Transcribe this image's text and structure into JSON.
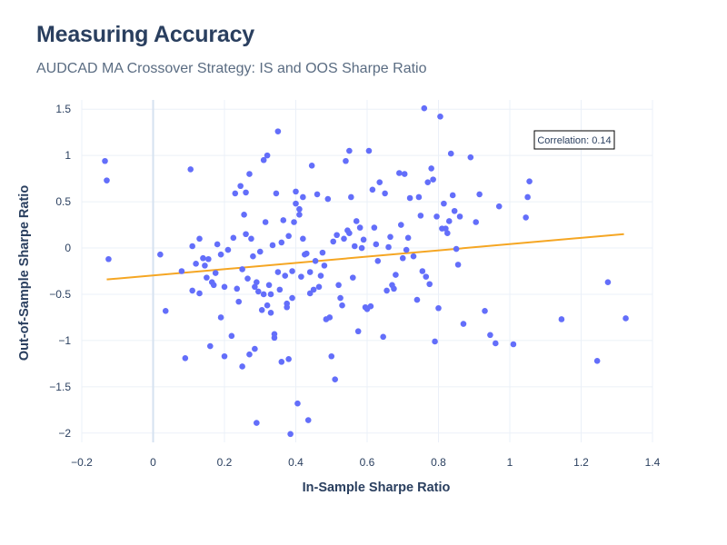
{
  "chart_data": {
    "type": "scatter",
    "title": "Measuring Accuracy",
    "subtitle": "AUDCAD MA Crossover Strategy: IS and OOS Sharpe Ratio",
    "xlabel": "In-Sample Sharpe Ratio",
    "ylabel": "Out-of-Sample Sharpe Ratio",
    "xlim": [
      -0.2,
      1.4
    ],
    "ylim": [
      -2.1,
      1.6
    ],
    "xticks": [
      -0.2,
      0,
      0.2,
      0.4,
      0.6,
      0.8,
      1,
      1.2,
      1.4
    ],
    "xtick_labels": [
      "−0.2",
      "0",
      "0.2",
      "0.4",
      "0.6",
      "0.8",
      "1",
      "1.2",
      "1.4"
    ],
    "yticks": [
      -2,
      -1.5,
      -1,
      -0.5,
      0,
      0.5,
      1,
      1.5
    ],
    "ytick_labels": [
      "−2",
      "−1.5",
      "−1",
      "−0.5",
      "0",
      "0.5",
      "1",
      "1.5"
    ],
    "grid": true,
    "marker_color": "#636efa",
    "trend_color": "#f5a623",
    "trendline": [
      [
        -0.13,
        -0.34
      ],
      [
        1.32,
        0.15
      ]
    ],
    "annotation": "Correlation: 0.14",
    "points": [
      [
        -0.135,
        0.94
      ],
      [
        -0.13,
        0.73
      ],
      [
        -0.125,
        -0.12
      ],
      [
        0.02,
        -0.07
      ],
      [
        0.035,
        -0.68
      ],
      [
        0.08,
        -0.25
      ],
      [
        0.09,
        -1.19
      ],
      [
        0.105,
        0.85
      ],
      [
        0.11,
        0.02
      ],
      [
        0.11,
        -0.46
      ],
      [
        0.12,
        -0.17
      ],
      [
        0.13,
        -0.49
      ],
      [
        0.13,
        0.1
      ],
      [
        0.14,
        -0.11
      ],
      [
        0.145,
        -0.19
      ],
      [
        0.15,
        -0.32
      ],
      [
        0.155,
        -0.12
      ],
      [
        0.16,
        -1.06
      ],
      [
        0.165,
        -0.37
      ],
      [
        0.17,
        -0.4
      ],
      [
        0.175,
        -0.27
      ],
      [
        0.18,
        0.04
      ],
      [
        0.19,
        -0.07
      ],
      [
        0.19,
        -0.75
      ],
      [
        0.2,
        -0.42
      ],
      [
        0.2,
        -1.17
      ],
      [
        0.21,
        -0.02
      ],
      [
        0.22,
        -0.95
      ],
      [
        0.225,
        0.11
      ],
      [
        0.23,
        0.59
      ],
      [
        0.235,
        -0.44
      ],
      [
        0.24,
        -0.58
      ],
      [
        0.245,
        0.67
      ],
      [
        0.25,
        -0.23
      ],
      [
        0.25,
        -1.28
      ],
      [
        0.255,
        0.36
      ],
      [
        0.26,
        0.6
      ],
      [
        0.26,
        0.15
      ],
      [
        0.265,
        -0.33
      ],
      [
        0.27,
        0.8
      ],
      [
        0.27,
        -1.15
      ],
      [
        0.275,
        0.1
      ],
      [
        0.28,
        -0.09
      ],
      [
        0.285,
        -0.42
      ],
      [
        0.285,
        -1.09
      ],
      [
        0.29,
        -1.89
      ],
      [
        0.29,
        -0.37
      ],
      [
        0.295,
        -0.47
      ],
      [
        0.3,
        -0.04
      ],
      [
        0.305,
        -0.67
      ],
      [
        0.31,
        0.95
      ],
      [
        0.31,
        -0.5
      ],
      [
        0.315,
        0.28
      ],
      [
        0.32,
        1.0
      ],
      [
        0.32,
        -0.62
      ],
      [
        0.325,
        -0.4
      ],
      [
        0.33,
        -0.5
      ],
      [
        0.33,
        -0.7
      ],
      [
        0.335,
        0.03
      ],
      [
        0.34,
        -0.93
      ],
      [
        0.34,
        -0.97
      ],
      [
        0.345,
        0.59
      ],
      [
        0.35,
        1.26
      ],
      [
        0.35,
        -0.26
      ],
      [
        0.355,
        -0.45
      ],
      [
        0.36,
        0.06
      ],
      [
        0.36,
        -1.23
      ],
      [
        0.365,
        0.3
      ],
      [
        0.37,
        -0.3
      ],
      [
        0.375,
        -0.6
      ],
      [
        0.375,
        -0.64
      ],
      [
        0.38,
        0.13
      ],
      [
        0.38,
        -1.2
      ],
      [
        0.385,
        -2.01
      ],
      [
        0.39,
        -0.54
      ],
      [
        0.39,
        -0.25
      ],
      [
        0.395,
        0.28
      ],
      [
        0.4,
        0.61
      ],
      [
        0.4,
        0.48
      ],
      [
        0.405,
        -1.68
      ],
      [
        0.41,
        0.42
      ],
      [
        0.41,
        0.36
      ],
      [
        0.415,
        -0.31
      ],
      [
        0.42,
        0.55
      ],
      [
        0.42,
        0.1
      ],
      [
        0.425,
        -0.07
      ],
      [
        0.43,
        -0.06
      ],
      [
        0.435,
        -1.86
      ],
      [
        0.44,
        -0.49
      ],
      [
        0.44,
        -0.26
      ],
      [
        0.445,
        0.89
      ],
      [
        0.45,
        -0.45
      ],
      [
        0.455,
        -0.14
      ],
      [
        0.46,
        0.58
      ],
      [
        0.465,
        -0.42
      ],
      [
        0.47,
        -0.3
      ],
      [
        0.475,
        -0.05
      ],
      [
        0.48,
        -0.19
      ],
      [
        0.485,
        -0.77
      ],
      [
        0.49,
        0.53
      ],
      [
        0.495,
        -0.75
      ],
      [
        0.5,
        -1.17
      ],
      [
        0.505,
        0.07
      ],
      [
        0.51,
        -1.42
      ],
      [
        0.515,
        0.14
      ],
      [
        0.52,
        -0.4
      ],
      [
        0.525,
        -0.54
      ],
      [
        0.53,
        -0.62
      ],
      [
        0.535,
        0.1
      ],
      [
        0.54,
        0.94
      ],
      [
        0.545,
        0.19
      ],
      [
        0.55,
        1.05
      ],
      [
        0.55,
        0.16
      ],
      [
        0.555,
        0.55
      ],
      [
        0.56,
        -0.32
      ],
      [
        0.565,
        0.02
      ],
      [
        0.57,
        0.29
      ],
      [
        0.575,
        -0.9
      ],
      [
        0.58,
        0.22
      ],
      [
        0.585,
        0.0
      ],
      [
        0.59,
        0.09
      ],
      [
        0.595,
        -0.64
      ],
      [
        0.6,
        -0.66
      ],
      [
        0.605,
        1.05
      ],
      [
        0.61,
        -0.63
      ],
      [
        0.615,
        0.63
      ],
      [
        0.62,
        0.22
      ],
      [
        0.625,
        0.04
      ],
      [
        0.63,
        -0.14
      ],
      [
        0.635,
        0.71
      ],
      [
        0.645,
        -0.96
      ],
      [
        0.65,
        0.59
      ],
      [
        0.655,
        -0.46
      ],
      [
        0.66,
        0.01
      ],
      [
        0.665,
        0.12
      ],
      [
        0.67,
        -0.4
      ],
      [
        0.675,
        -0.44
      ],
      [
        0.68,
        -0.29
      ],
      [
        0.69,
        0.81
      ],
      [
        0.695,
        0.25
      ],
      [
        0.7,
        -0.11
      ],
      [
        0.705,
        0.8
      ],
      [
        0.71,
        -0.02
      ],
      [
        0.715,
        0.11
      ],
      [
        0.72,
        0.54
      ],
      [
        0.73,
        -0.09
      ],
      [
        0.74,
        -0.56
      ],
      [
        0.745,
        0.55
      ],
      [
        0.75,
        0.35
      ],
      [
        0.755,
        -0.25
      ],
      [
        0.76,
        1.51
      ],
      [
        0.765,
        -0.31
      ],
      [
        0.77,
        0.71
      ],
      [
        0.775,
        -0.39
      ],
      [
        0.78,
        0.86
      ],
      [
        0.785,
        0.74
      ],
      [
        0.79,
        -1.01
      ],
      [
        0.795,
        0.34
      ],
      [
        0.8,
        -0.65
      ],
      [
        0.805,
        1.42
      ],
      [
        0.81,
        0.21
      ],
      [
        0.815,
        0.48
      ],
      [
        0.82,
        0.21
      ],
      [
        0.825,
        0.16
      ],
      [
        0.83,
        0.29
      ],
      [
        0.835,
        1.02
      ],
      [
        0.84,
        0.57
      ],
      [
        0.845,
        0.4
      ],
      [
        0.85,
        -0.01
      ],
      [
        0.855,
        -0.18
      ],
      [
        0.86,
        0.34
      ],
      [
        0.87,
        -0.82
      ],
      [
        0.89,
        0.98
      ],
      [
        0.905,
        0.28
      ],
      [
        0.915,
        0.58
      ],
      [
        0.93,
        -0.68
      ],
      [
        0.945,
        -0.94
      ],
      [
        0.96,
        -1.03
      ],
      [
        0.97,
        0.45
      ],
      [
        1.01,
        -1.04
      ],
      [
        1.045,
        0.33
      ],
      [
        1.05,
        0.55
      ],
      [
        1.055,
        0.72
      ],
      [
        1.145,
        -0.77
      ],
      [
        1.245,
        -1.22
      ],
      [
        1.275,
        -0.37
      ],
      [
        1.325,
        -0.76
      ]
    ]
  }
}
